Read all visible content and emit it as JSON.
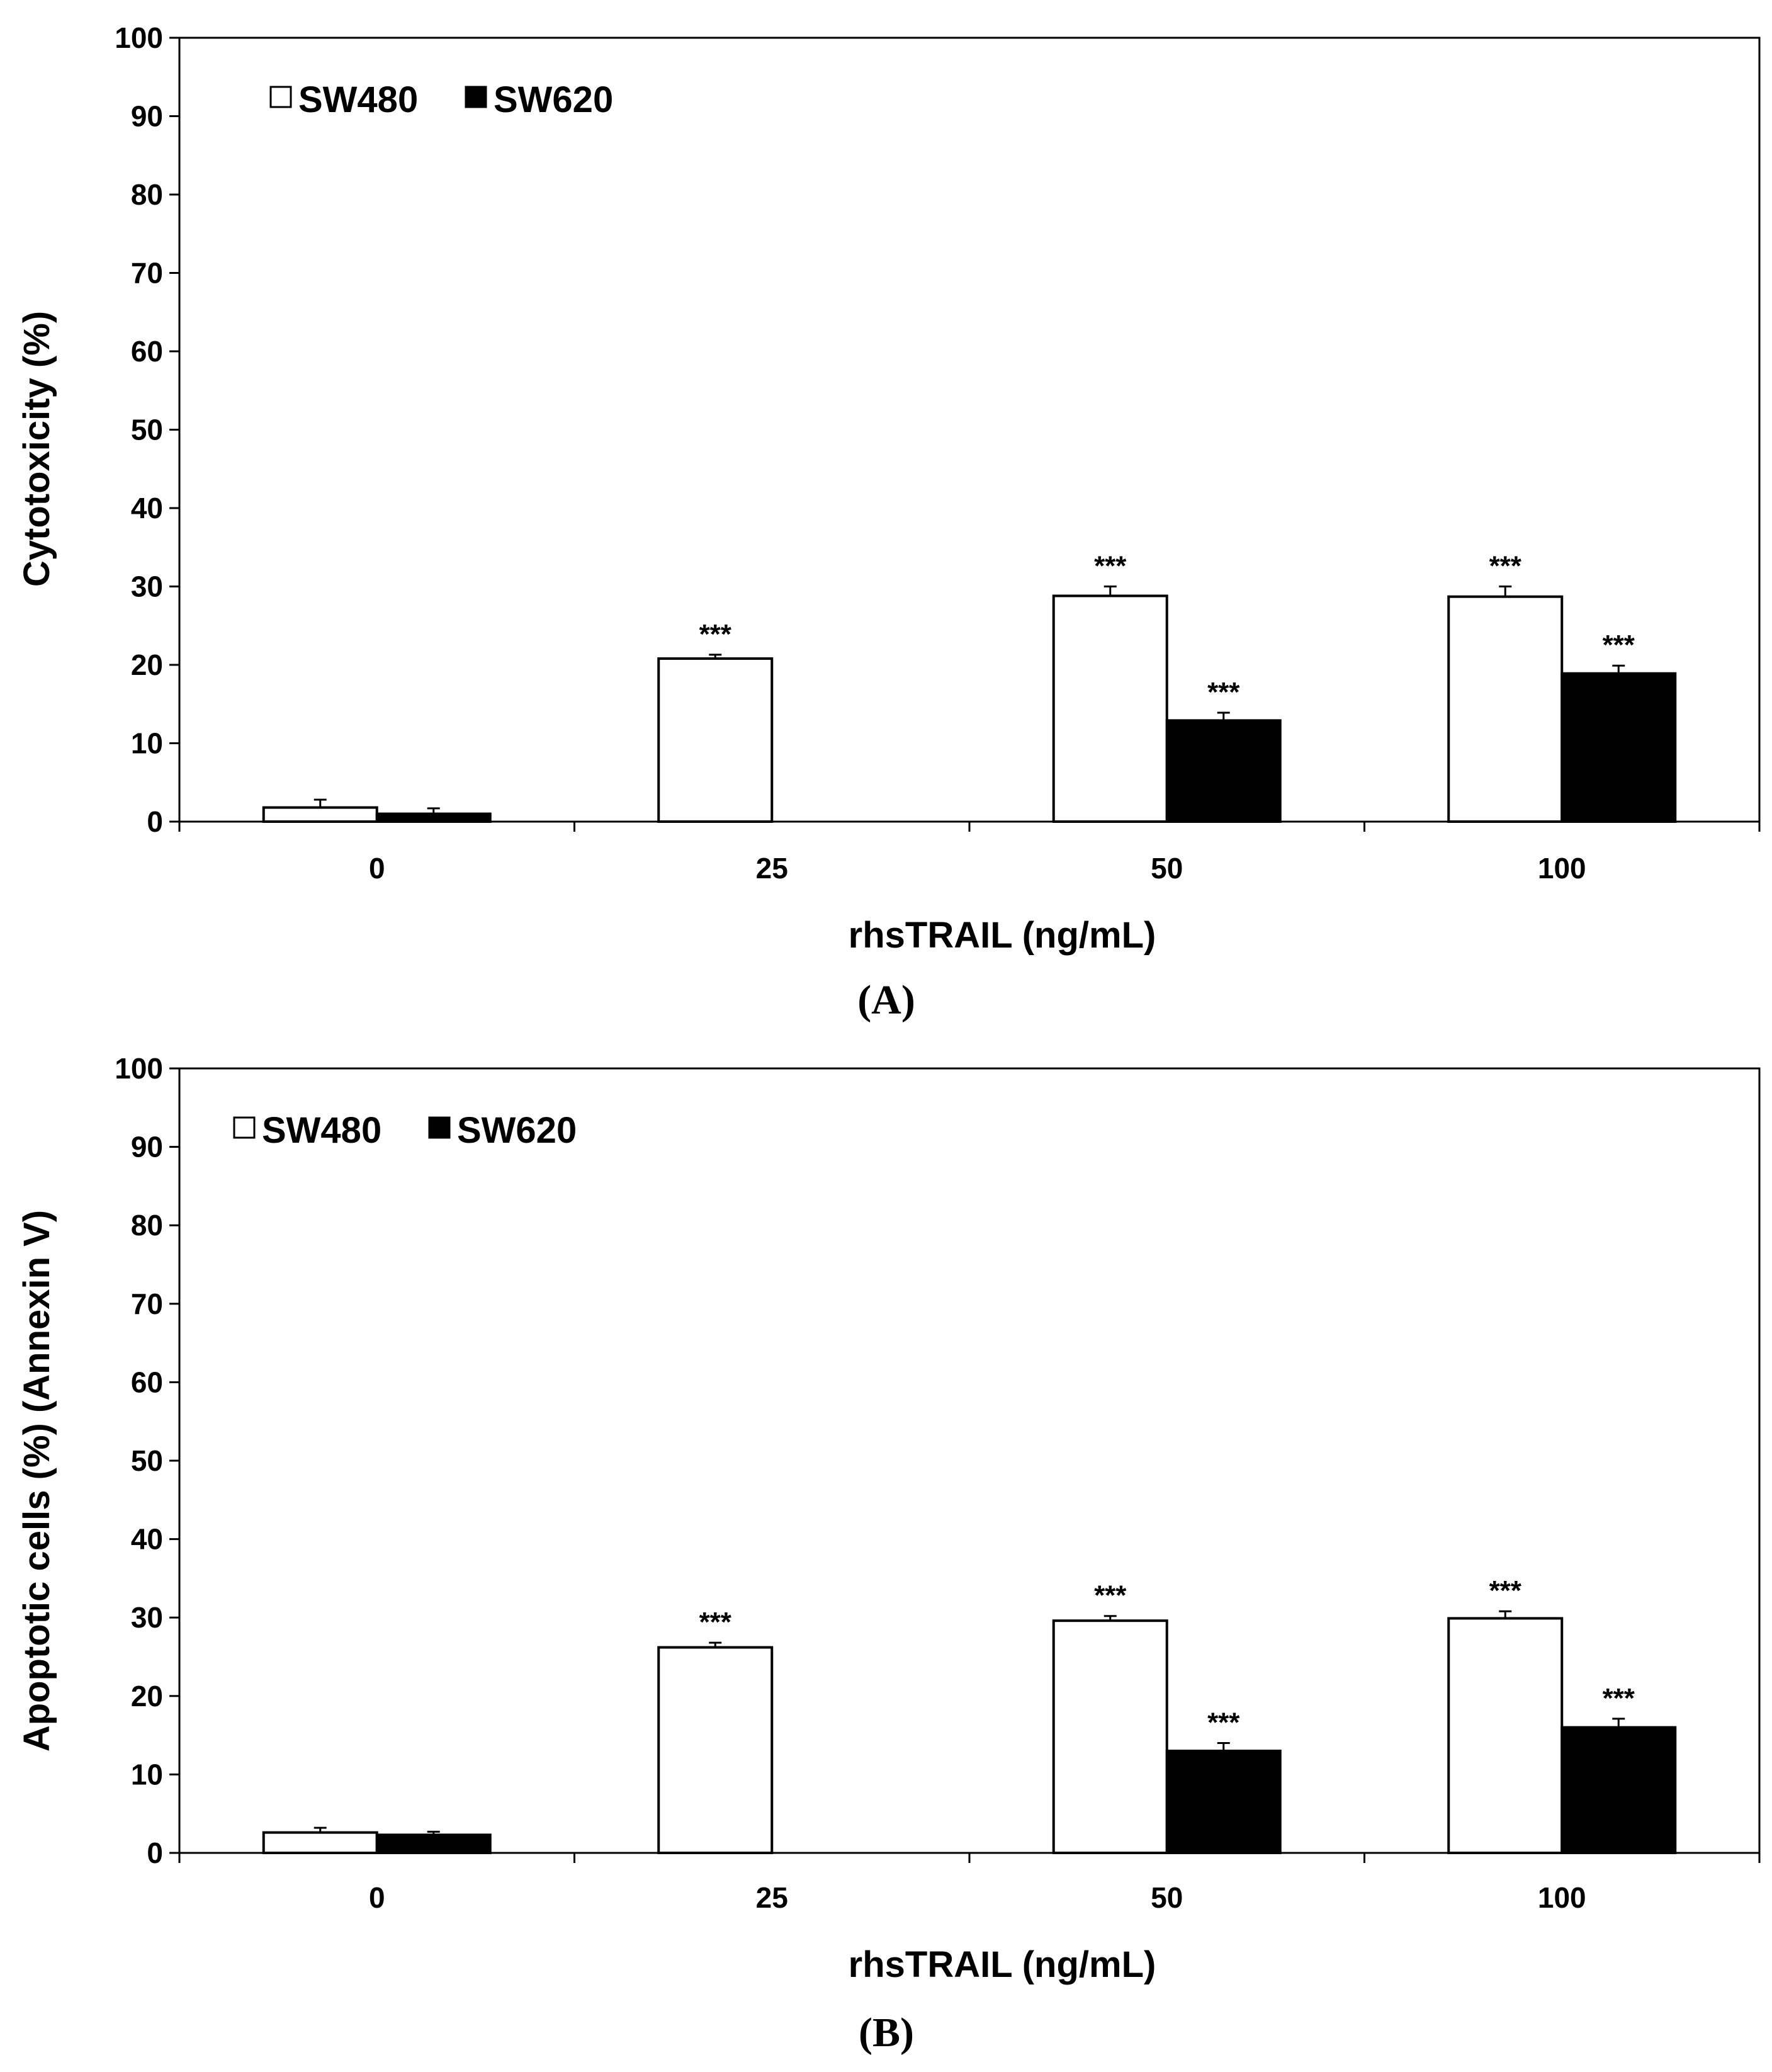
{
  "chart_data": [
    {
      "type": "bar",
      "panel_label": "(A)",
      "categories": [
        "0",
        "25",
        "50",
        "100"
      ],
      "series": [
        {
          "name": "SW480",
          "color": "#ffffff",
          "values": [
            1.8,
            20.8,
            28.8,
            28.7
          ],
          "errors": [
            1.0,
            0.5,
            1.2,
            1.3
          ],
          "significance": [
            "",
            "***",
            "***",
            "***"
          ]
        },
        {
          "name": "SW620",
          "color": "#000000",
          "values": [
            1.0,
            0,
            12.9,
            18.9
          ],
          "errors": [
            0.7,
            0,
            1.0,
            1.0
          ],
          "significance": [
            "",
            "",
            "***",
            "***"
          ]
        }
      ],
      "xlabel": "rhsTRAIL (ng/mL)",
      "ylabel": "Cytotoxicity (%)",
      "ylim": [
        0,
        100
      ],
      "yticks": [
        "0",
        "10",
        "20",
        "30",
        "40",
        "50",
        "60",
        "70",
        "80",
        "90",
        "100"
      ],
      "legend_position": "top-left"
    },
    {
      "type": "bar",
      "panel_label": "(B)",
      "categories": [
        "0",
        "25",
        "50",
        "100"
      ],
      "series": [
        {
          "name": "SW480",
          "color": "#ffffff",
          "values": [
            2.6,
            26.2,
            29.6,
            29.9
          ],
          "errors": [
            0.6,
            0.6,
            0.6,
            0.9
          ],
          "significance": [
            "",
            "***",
            "***",
            "***"
          ]
        },
        {
          "name": "SW620",
          "color": "#000000",
          "values": [
            2.3,
            0,
            13.0,
            16.0
          ],
          "errors": [
            0.4,
            0,
            1.0,
            1.1
          ],
          "significance": [
            "",
            "",
            "***",
            "***"
          ]
        }
      ],
      "xlabel": "rhsTRAIL (ng/mL)",
      "ylabel": "Apoptotic cells (%) (Annexin V)",
      "ylim": [
        0,
        100
      ],
      "yticks": [
        "0",
        "10",
        "20",
        "30",
        "40",
        "50",
        "60",
        "70",
        "80",
        "90",
        "100"
      ],
      "legend_position": "top-left"
    }
  ]
}
